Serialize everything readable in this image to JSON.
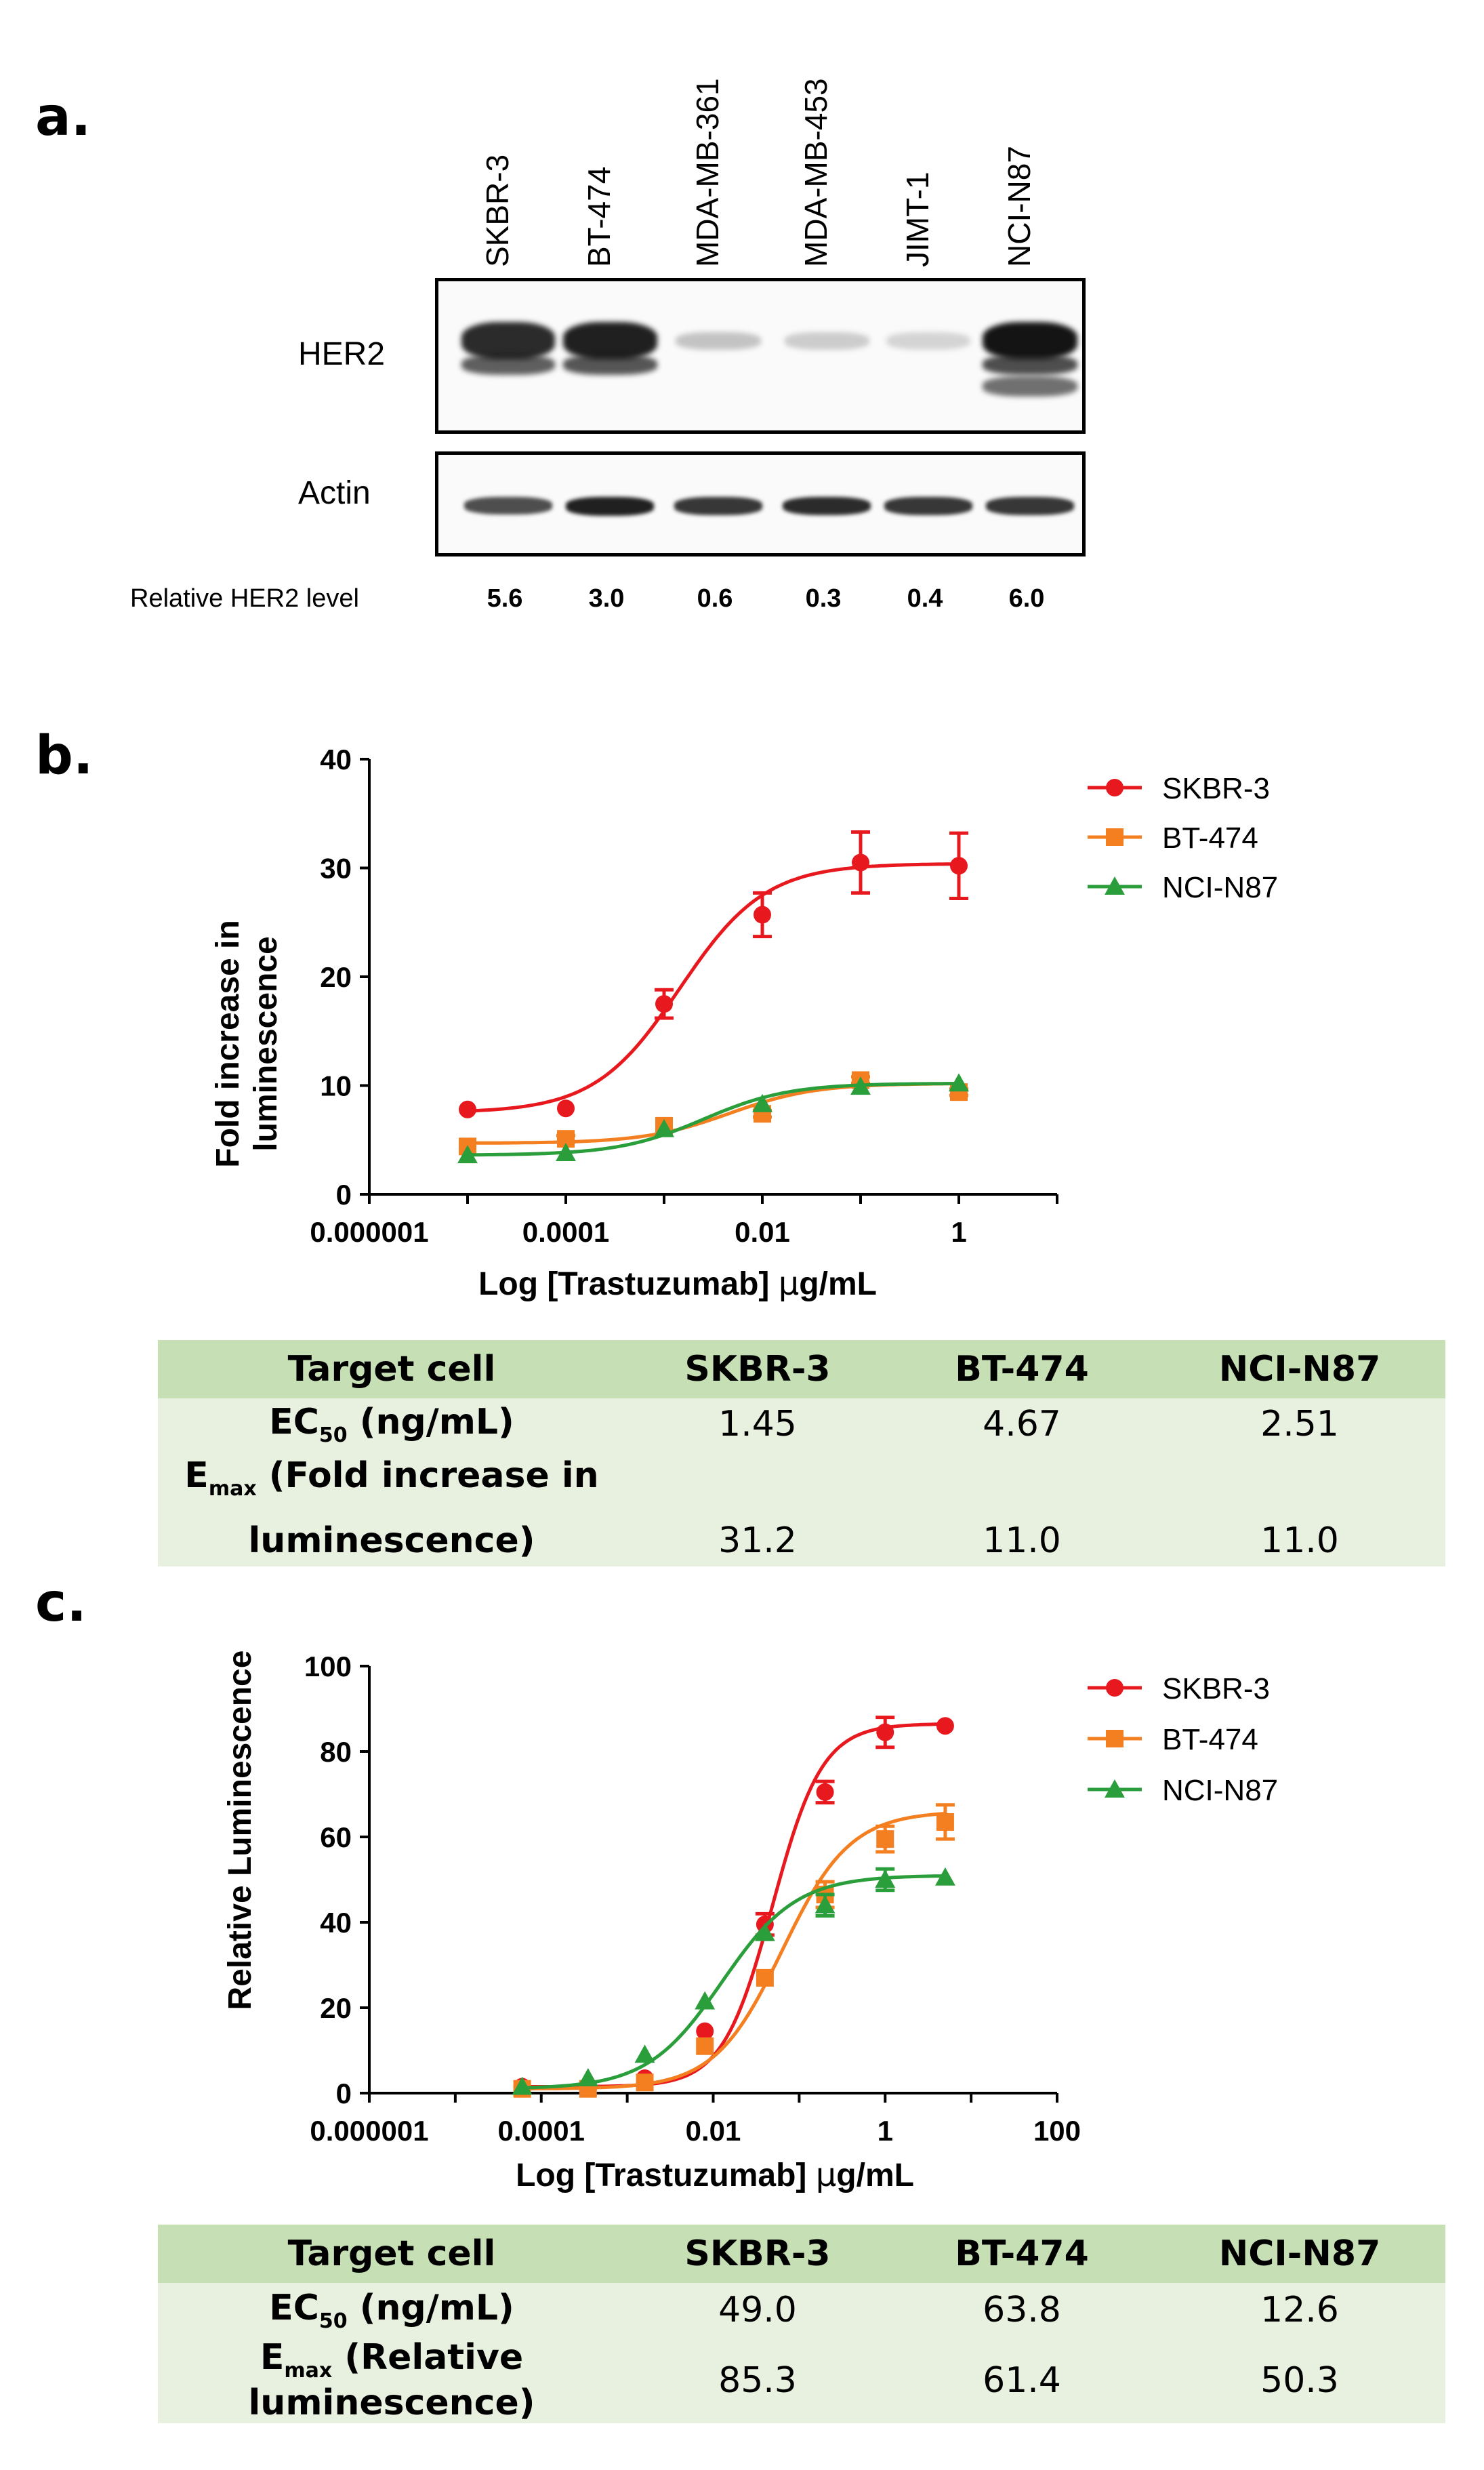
{
  "panels": {
    "a": "a.",
    "b": "b.",
    "c": "c."
  },
  "western_blot": {
    "lanes": [
      "SKBR-3",
      "BT-474",
      "MDA-MB-361",
      "MDA-MB-453",
      "JIMT-1",
      "NCI-N87"
    ],
    "rows": [
      "HER2",
      "Actin"
    ],
    "relative_label": "Relative  HER2  level",
    "relative_values": [
      "5.6",
      "3.0",
      "0.6",
      "0.3",
      "0.4",
      "6.0"
    ],
    "her2_intensity": [
      0.9,
      0.95,
      0.3,
      0.25,
      0.2,
      1.0
    ],
    "actin_intensity": [
      0.75,
      0.95,
      0.85,
      0.9,
      0.85,
      0.85
    ]
  },
  "chart_b": {
    "ylabel_line1": "Fold increase in",
    "ylabel_line2": "luminescence",
    "xlabel_pre": "Log [Trastuzumab] ",
    "xlabel_mu": "μ",
    "xlabel_post": "g/mL",
    "xtick_labels": [
      "0.000001",
      "0.0001",
      "0.01",
      "1"
    ],
    "ytick_labels": [
      "0",
      "10",
      "20",
      "30",
      "40"
    ]
  },
  "chart_c": {
    "ylabel": "Relative Luminescence",
    "xlabel_pre": "Log [Trastuzumab] ",
    "xlabel_mu": "μ",
    "xlabel_post": "g/mL",
    "xtick_labels": [
      "0.000001",
      "0.0001",
      "0.01",
      "1",
      "100"
    ],
    "ytick_labels": [
      "0",
      "20",
      "40",
      "60",
      "80",
      "100"
    ]
  },
  "chart_data": [
    {
      "type": "scatter",
      "xscale": "log",
      "xlim": [
        1e-06,
        10
      ],
      "ylim": [
        0,
        40
      ],
      "xlabel": "Log [Trastuzumab] μg/mL",
      "ylabel": "Fold increase in luminescence",
      "legend": "top-right",
      "series": [
        {
          "name": "SKBR-3",
          "color": "#e8191e",
          "marker": "circle",
          "x": [
            1e-05,
            0.0001,
            0.001,
            0.01,
            0.1,
            1
          ],
          "y": [
            7.8,
            7.9,
            17.5,
            25.7,
            30.5,
            30.2
          ],
          "err": [
            0,
            0,
            1.3,
            2.0,
            2.8,
            3.0
          ],
          "fit": {
            "bottom": 7.5,
            "top": 30.4,
            "ec50": 0.00145,
            "hill": 1.0
          }
        },
        {
          "name": "BT-474",
          "color": "#f47f20",
          "marker": "square",
          "x": [
            1e-05,
            0.0001,
            0.001,
            0.01,
            0.1,
            1
          ],
          "y": [
            4.4,
            5.1,
            6.3,
            7.4,
            10.5,
            9.4
          ],
          "err": [
            0,
            0.3,
            0,
            0.3,
            0.3,
            0.3
          ],
          "fit": {
            "bottom": 4.7,
            "top": 10.2,
            "ec50": 0.00467,
            "hill": 1.0
          }
        },
        {
          "name": "NCI-N87",
          "color": "#2a9e3a",
          "marker": "triangle",
          "x": [
            1e-05,
            0.0001,
            0.001,
            0.01,
            0.1,
            1
          ],
          "y": [
            3.6,
            3.8,
            6.0,
            8.3,
            9.9,
            10.2
          ],
          "err": [
            0,
            0,
            0,
            0,
            0,
            0
          ],
          "fit": {
            "bottom": 3.6,
            "top": 10.2,
            "ec50": 0.00251,
            "hill": 1.0
          }
        }
      ]
    },
    {
      "type": "scatter",
      "xscale": "log",
      "xlim": [
        1e-06,
        100
      ],
      "ylim": [
        0,
        100
      ],
      "xlabel": "Log [Trastuzumab] μg/mL",
      "ylabel": "Relative Luminescence",
      "legend": "top-right",
      "series": [
        {
          "name": "SKBR-3",
          "color": "#e8191e",
          "marker": "circle",
          "x": [
            6e-05,
            0.00035,
            0.0016,
            0.008,
            0.04,
            0.2,
            1,
            5
          ],
          "y": [
            1.5,
            1.5,
            3.5,
            14.5,
            39.5,
            70.5,
            84.5,
            86.0
          ],
          "err": [
            0,
            0,
            0,
            0,
            2.5,
            2.5,
            3.5,
            0
          ],
          "fit": {
            "bottom": 1.5,
            "top": 86.5,
            "ec50": 0.049,
            "hill": 1.5
          }
        },
        {
          "name": "BT-474",
          "color": "#f47f20",
          "marker": "square",
          "x": [
            6e-05,
            0.00035,
            0.0016,
            0.008,
            0.04,
            0.2,
            1,
            5
          ],
          "y": [
            1.0,
            1.0,
            2.5,
            11.0,
            27.0,
            46.5,
            59.5,
            63.5
          ],
          "err": [
            0,
            0,
            0,
            0,
            0,
            3.0,
            3.0,
            4.0
          ],
          "fit": {
            "bottom": 1.0,
            "top": 66.0,
            "ec50": 0.0638,
            "hill": 1.1
          }
        },
        {
          "name": "NCI-N87",
          "color": "#2a9e3a",
          "marker": "triangle",
          "x": [
            6e-05,
            0.00035,
            0.0016,
            0.008,
            0.04,
            0.2,
            1,
            5
          ],
          "y": [
            1.5,
            3.5,
            9.0,
            21.5,
            37.5,
            44.0,
            50.0,
            50.5
          ],
          "err": [
            0,
            0,
            0,
            0,
            0,
            2.5,
            2.5,
            0
          ],
          "fit": {
            "bottom": 1.0,
            "top": 51.0,
            "ec50": 0.0126,
            "hill": 1.0
          }
        }
      ]
    }
  ],
  "table_b": {
    "header": [
      "Target cell",
      "SKBR-3",
      "BT-474",
      "NCI-N87"
    ],
    "ec50_label_pre": "EC",
    "ec50_label_sub": "50",
    "ec50_label_post": " (ng/mL)",
    "ec50_values": [
      "1.45",
      "4.67",
      "2.51"
    ],
    "emax_label_pre": "E",
    "emax_label_sub": "max",
    "emax_label_post": " (Fold increase in",
    "emax_label_line2": "luminescence)",
    "emax_values": [
      "31.2",
      "11.0",
      "11.0"
    ]
  },
  "table_c": {
    "header": [
      "Target cell",
      "SKBR-3",
      "BT-474",
      "NCI-N87"
    ],
    "ec50_label_pre": "EC",
    "ec50_label_sub": "50",
    "ec50_label_post": " (ng/mL)",
    "ec50_values": [
      "49.0",
      "63.8",
      "12.6"
    ],
    "emax_label_pre": "E",
    "emax_label_sub": "max",
    "emax_label_post": " (Relative luminescence)",
    "emax_values": [
      "85.3",
      "61.4",
      "50.3"
    ]
  }
}
